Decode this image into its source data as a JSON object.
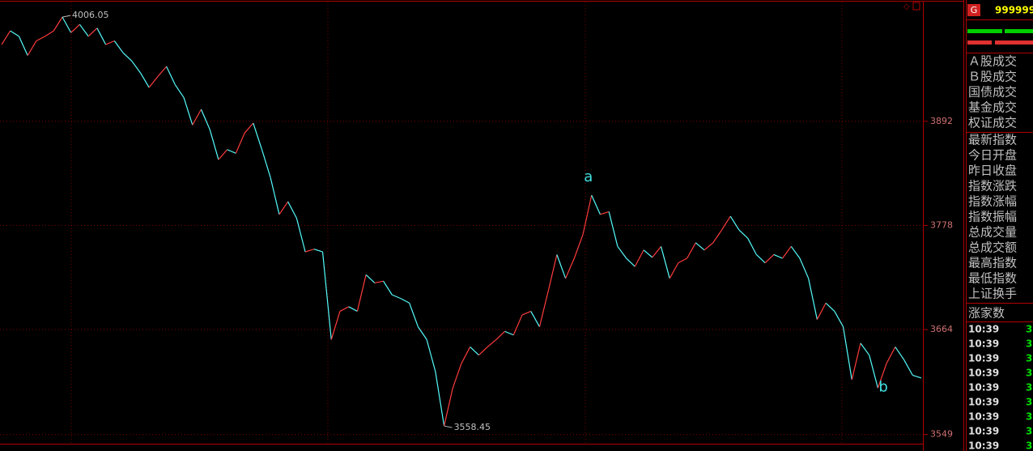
{
  "chart_data": {
    "type": "line",
    "categories": [
      null,
      null,
      null,
      null,
      null,
      null,
      null,
      null,
      null,
      null,
      null,
      null,
      null,
      null,
      null,
      null,
      null,
      null,
      null,
      null,
      null,
      null,
      null,
      null,
      null,
      null,
      null,
      null,
      null,
      null,
      null,
      null,
      null,
      null,
      null,
      null,
      null,
      null,
      null,
      null,
      null,
      null,
      null,
      null,
      null,
      null,
      null,
      null,
      null,
      null,
      null,
      null,
      null,
      null,
      null,
      null,
      null,
      null,
      null,
      null,
      null,
      null,
      null,
      null,
      null,
      null,
      null,
      null,
      null,
      null,
      null,
      null,
      null,
      null,
      null,
      null,
      null,
      null,
      null,
      null,
      null,
      null,
      null,
      null,
      null,
      null,
      null,
      null,
      null,
      null,
      null,
      null,
      null,
      null,
      null,
      null,
      null,
      null,
      null,
      null,
      null,
      null,
      null,
      null,
      null,
      null,
      null
    ],
    "values": [
      3976,
      3991,
      3985,
      3964,
      3980,
      3985,
      3991,
      4006.05,
      3989,
      3998,
      3985,
      3994,
      3976,
      3980,
      3967,
      3958,
      3945,
      3929,
      3941,
      3952,
      3932,
      3918,
      3888,
      3905,
      3883,
      3850,
      3861,
      3857,
      3879,
      3890,
      3861,
      3830,
      3790,
      3804,
      3786,
      3749,
      3752,
      3749,
      3653,
      3684,
      3689,
      3684,
      3724,
      3715,
      3717,
      3702,
      3698,
      3693,
      3667,
      3653,
      3618,
      3558.45,
      3600,
      3627,
      3645,
      3636,
      3645,
      3653,
      3662,
      3658,
      3680,
      3684,
      3667,
      3706,
      3746,
      3720,
      3742,
      3768,
      3811,
      3790,
      3793,
      3755,
      3742,
      3733,
      3751,
      3743,
      3755,
      3720,
      3737,
      3742,
      3759,
      3751,
      3759,
      3773,
      3788,
      3773,
      3764,
      3746,
      3737,
      3746,
      3742,
      3755,
      3742,
      3720,
      3675,
      3693,
      3684,
      3667,
      3609,
      3649,
      3636,
      3600,
      3627,
      3645,
      3631,
      3614,
      3611
    ],
    "up_color": "#ff3c3c",
    "down_color": "#54fcfc",
    "ylim": [
      3539,
      4023
    ],
    "yticks": [
      3549,
      3664,
      3778,
      3892
    ],
    "grid": true,
    "annotations": [
      "a",
      "b"
    ]
  },
  "sidebar": {
    "code": "G",
    "symbol": "999999",
    "group1": [
      "Ａ股成交",
      "Ｂ股成交",
      "国债成交",
      "基金成交",
      "权证成交"
    ],
    "group2": [
      "最新指数",
      "今日开盘",
      "昨日收盘",
      "指数涨跌",
      "指数涨幅",
      "指数振幅",
      "总成交量",
      "总成交额",
      "最高指数",
      "最低指数",
      "上证换手"
    ],
    "label": "涨家数",
    "ticks": [
      {
        "time": "10:39",
        "value": "3"
      },
      {
        "time": "10:39",
        "value": "3"
      },
      {
        "time": "10:39",
        "value": "3"
      },
      {
        "time": "10:39",
        "value": "3"
      },
      {
        "time": "10:39",
        "value": "3"
      },
      {
        "time": "10:39",
        "value": "3"
      },
      {
        "time": "10:39",
        "value": "3"
      },
      {
        "time": "10:39",
        "value": "3"
      },
      {
        "time": "10:39",
        "value": "3"
      }
    ]
  }
}
